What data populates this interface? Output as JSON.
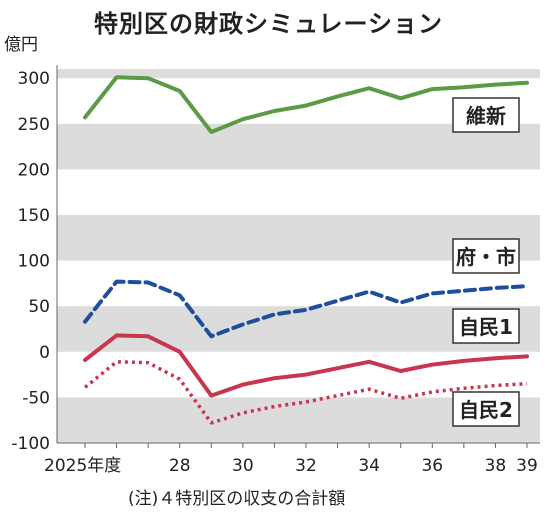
{
  "title": "特別区の財政シミュレーション",
  "unit": "億円",
  "note": "(注)４特別区の収支の合計額",
  "chart_data": {
    "type": "line",
    "title": "特別区の財政シミュレーション",
    "ylabel": "億円",
    "xlabel": "",
    "x": [
      2025,
      2026,
      2027,
      2028,
      2029,
      2030,
      2031,
      2032,
      2033,
      2034,
      2035,
      2036,
      2037,
      2038,
      2039
    ],
    "x_tick_labels": [
      {
        "x": 2025,
        "label": "2025年度"
      },
      {
        "x": 2028,
        "label": "28"
      },
      {
        "x": 2030,
        "label": "30"
      },
      {
        "x": 2032,
        "label": "32"
      },
      {
        "x": 2034,
        "label": "34"
      },
      {
        "x": 2036,
        "label": "36"
      },
      {
        "x": 2038,
        "label": "38"
      },
      {
        "x": 2039,
        "label": "39"
      }
    ],
    "ylim": [
      -100,
      310
    ],
    "yticks": [
      -100,
      -50,
      0,
      50,
      100,
      150,
      200,
      250,
      300
    ],
    "ytick_labels": [
      "-100",
      "-50",
      "0",
      "50",
      "100",
      "150",
      "200",
      "250",
      "300"
    ],
    "series": [
      {
        "name": "維新",
        "color": "#5d9a45",
        "style": "solid",
        "values": [
          257,
          301,
          300,
          286,
          241,
          255,
          264,
          270,
          280,
          289,
          278,
          288,
          290,
          293,
          295
        ]
      },
      {
        "name": "府・市",
        "color": "#1f4e9c",
        "style": "dashed",
        "values": [
          33,
          77,
          76,
          62,
          17,
          30,
          41,
          46,
          56,
          66,
          54,
          64,
          67,
          70,
          72
        ]
      },
      {
        "name": "自民1",
        "color": "#c7354f",
        "style": "solid",
        "values": [
          -9,
          18,
          17,
          0,
          -48,
          -36,
          -29,
          -25,
          -18,
          -11,
          -21,
          -14,
          -10,
          -7,
          -5
        ]
      },
      {
        "name": "自民2",
        "color": "#c7354f",
        "style": "dotted",
        "values": [
          -39,
          -11,
          -12,
          -30,
          -78,
          -67,
          -60,
          -55,
          -48,
          -41,
          -51,
          -44,
          -40,
          -37,
          -35
        ]
      }
    ],
    "bands": "alternating gray every 50",
    "legend": "right"
  }
}
